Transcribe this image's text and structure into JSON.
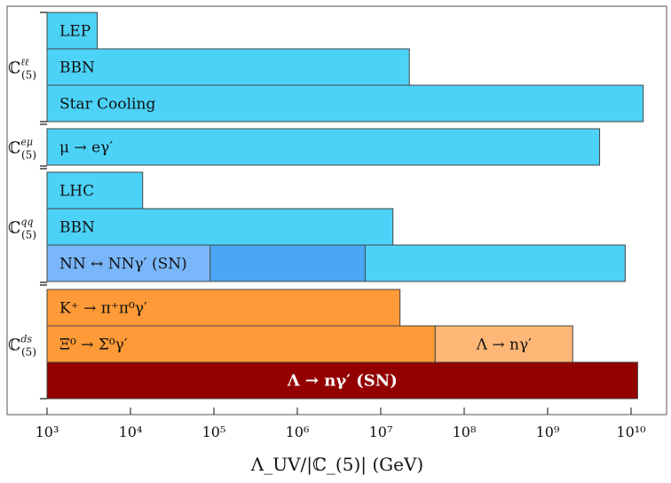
{
  "chart_data": {
    "type": "bar",
    "orientation": "horizontal",
    "xscale": "log",
    "xlim": [
      500,
      20000000000
    ],
    "xlabel": "Λ_UV/|ℂ_(5)| (GeV)",
    "x_ticks": [
      {
        "value": 1000,
        "label": "10³"
      },
      {
        "value": 10000,
        "label": "10⁴"
      },
      {
        "value": 100000,
        "label": "10⁵"
      },
      {
        "value": 1000000,
        "label": "10⁶"
      },
      {
        "value": 10000000,
        "label": "10⁷"
      },
      {
        "value": 100000000,
        "label": "10⁸"
      },
      {
        "value": 1000000000,
        "label": "10⁹"
      },
      {
        "value": 10000000000,
        "label": "10¹⁰"
      }
    ],
    "groups": [
      {
        "label": "ℂ",
        "sup": "ℓℓ",
        "sub": "(5)"
      },
      {
        "label": "ℂ",
        "sup": "eμ",
        "sub": "(5)"
      },
      {
        "label": "ℂ",
        "sup": "qq",
        "sub": "(5)"
      },
      {
        "label": "ℂ",
        "sup": "ds",
        "sub": "(5)"
      }
    ],
    "bars": [
      {
        "group": 0,
        "label": "LEP",
        "value": 4000,
        "color": "#4dd2f7"
      },
      {
        "group": 0,
        "label": "BBN",
        "value": 22000000,
        "color": "#4dd2f7"
      },
      {
        "group": 0,
        "label": "Star Cooling",
        "value": 14000000000,
        "color": "#4dd2f7"
      },
      {
        "group": 1,
        "label": "μ → eγ′",
        "value": 4200000000,
        "color": "#4dd2f7"
      },
      {
        "group": 2,
        "label": "LHC",
        "value": 14000,
        "color": "#4dd2f7"
      },
      {
        "group": 2,
        "label": "BBN",
        "value": 14000000,
        "color": "#4dd2f7"
      },
      {
        "group": 2,
        "label": "NN ↔ NNγ′ (SN)",
        "value": 8500000000,
        "color": "#4dd2f7",
        "overlays": [
          {
            "value": 6500000,
            "color": "#4ba7f5"
          },
          {
            "value": 90000,
            "color": "#7ab7fa"
          }
        ]
      },
      {
        "group": 3,
        "label": "K⁺ → π⁺π⁰γ′",
        "value": 17000000,
        "color": "#fe9a37"
      },
      {
        "group": 3,
        "label": "Ξ⁰ → Σ⁰γ′",
        "value": 45000000,
        "color": "#fe9a37",
        "extension": {
          "label": "Λ → nγ′",
          "value": 2000000000,
          "color": "#ffb777"
        }
      },
      {
        "group": 3,
        "label": "Λ → nγ′ (SN)",
        "value": 12000000000,
        "color": "#930000",
        "label_style": "bold"
      }
    ]
  }
}
